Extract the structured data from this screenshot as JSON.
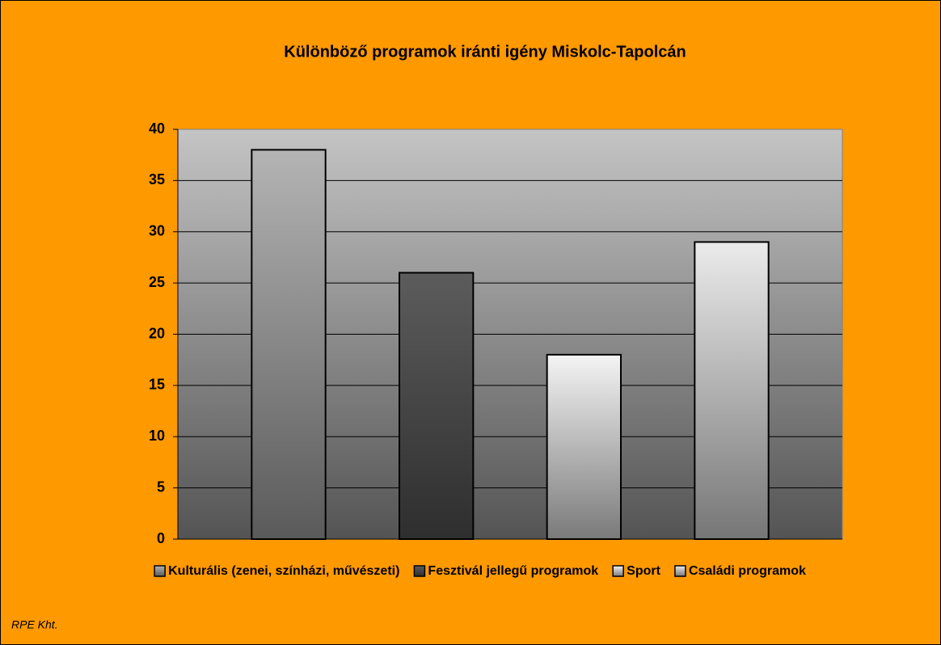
{
  "chart_data": {
    "type": "bar",
    "title": "Különböző programok iránti igény Miskolc-Tapolcán",
    "categories": [
      null
    ],
    "series": [
      {
        "name": "Kulturális (zenei, színházi, művészeti)",
        "color": "#b4b4b4",
        "values": [
          38
        ]
      },
      {
        "name": "Fesztivál jellegű programok",
        "color": "#5c5c5c",
        "values": [
          26
        ]
      },
      {
        "name": "Sport",
        "color": "#f4f4f4",
        "values": [
          18
        ]
      },
      {
        "name": "Családi programok",
        "color": "#ebebeb",
        "values": [
          29
        ]
      }
    ],
    "ylim": [
      0,
      40
    ],
    "yticks": [
      0,
      5,
      10,
      15,
      20,
      25,
      30,
      35,
      40
    ],
    "grid": true,
    "legend": "bottom",
    "source": "RPE Kht."
  }
}
